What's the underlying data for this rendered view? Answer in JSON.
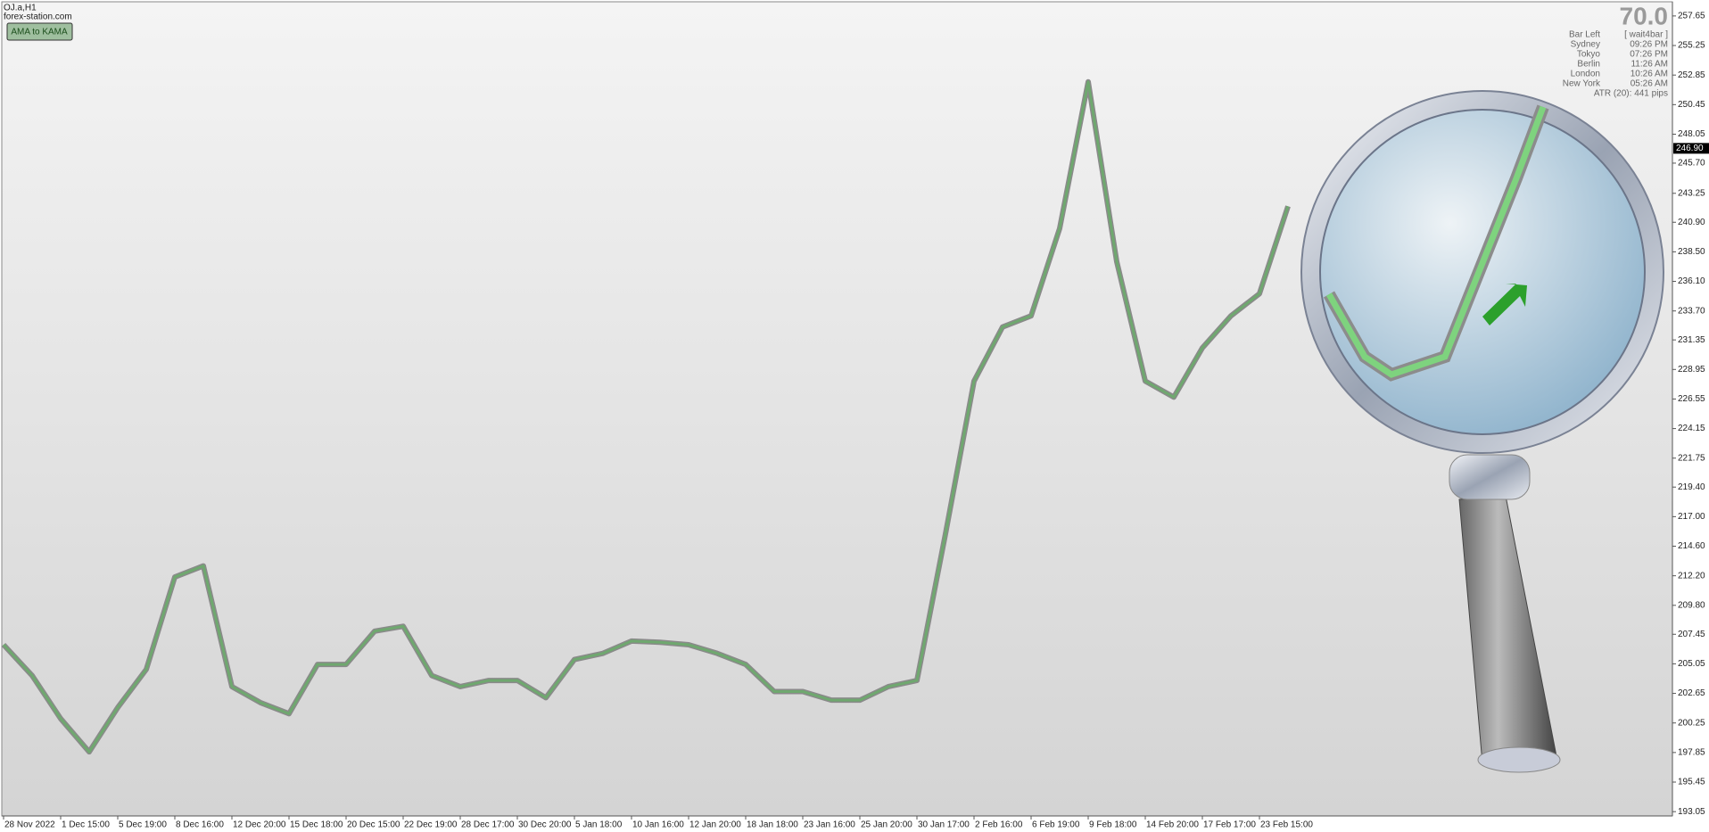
{
  "chart_data": {
    "type": "line",
    "symbol": "OJ.a,H1",
    "source": "forex-station.com",
    "button": "AMA to KAMA",
    "info": {
      "value": "70.0",
      "rows": [
        [
          "Bar Left",
          "[ wait4bar ]"
        ],
        [
          "Sydney",
          "09:26 PM"
        ],
        [
          "Tokyo",
          "07:26 PM"
        ],
        [
          "Berlin",
          "11:26 AM"
        ],
        [
          "London",
          "10:26 AM"
        ],
        [
          "New York",
          "05:26 AM"
        ]
      ],
      "atr": "ATR (20): 441 pips"
    },
    "price_marker": {
      "value": 246.9,
      "label": "246.90"
    },
    "categories": [
      "28 Nov 2022",
      null,
      "1 Dec 15:00",
      null,
      "5 Dec 19:00",
      null,
      "8 Dec 16:00",
      null,
      "12 Dec 20:00",
      null,
      "15 Dec 18:00",
      null,
      "20 Dec 15:00",
      null,
      "22 Dec 19:00",
      null,
      "28 Dec 17:00",
      null,
      "30 Dec 20:00",
      null,
      "5 Jan 18:00",
      null,
      "10 Jan 16:00",
      null,
      "12 Jan 20:00",
      null,
      "18 Jan 18:00",
      null,
      "23 Jan 16:00",
      null,
      "25 Jan 20:00",
      null,
      "30 Jan 17:00",
      null,
      "2 Feb 16:00",
      null,
      "6 Feb 19:00",
      null,
      "9 Feb 18:00",
      null,
      "14 Feb 20:00",
      null,
      "17 Feb 17:00",
      null,
      "23 Feb 15:00",
      null
    ],
    "values": [
      206.6,
      204.1,
      200.6,
      197.9,
      201.5,
      204.6,
      212.1,
      213.0,
      203.2,
      201.9,
      201.0,
      205.0,
      205.0,
      207.7,
      208.1,
      204.1,
      203.2,
      203.7,
      203.7,
      202.3,
      205.4,
      205.9,
      206.9,
      206.8,
      206.6,
      205.9,
      205.0,
      202.8,
      202.8,
      202.1,
      202.1,
      203.2,
      203.7,
      215.6,
      228.0,
      232.4,
      233.3,
      240.4,
      252.3,
      237.7,
      228.0,
      226.7,
      230.7,
      233.3,
      235.1,
      242.2
    ],
    "color": "#6fa86f",
    "ylim": [
      192.7,
      258.8
    ],
    "yticks": [
      257.65,
      255.25,
      252.85,
      250.45,
      248.05,
      {
        "value": 245.7,
        "label": "245.70"
      },
      243.25,
      {
        "value": 240.9,
        "label": "240.90"
      },
      {
        "value": 238.5,
        "label": "238.50"
      },
      {
        "value": 236.1,
        "label": "236.10"
      },
      {
        "value": 233.7,
        "label": "233.70"
      },
      231.35,
      228.95,
      226.55,
      224.15,
      221.75,
      {
        "value": 219.4,
        "label": "219.40"
      },
      {
        "value": 217,
        "label": "217.00"
      },
      {
        "value": 214.6,
        "label": "214.60"
      },
      {
        "value": 212.2,
        "label": "212.20"
      },
      {
        "value": 209.8,
        "label": "209.80"
      },
      207.45,
      205.05,
      202.65,
      200.25,
      197.85,
      195.45,
      193.05
    ],
    "grid": false
  }
}
